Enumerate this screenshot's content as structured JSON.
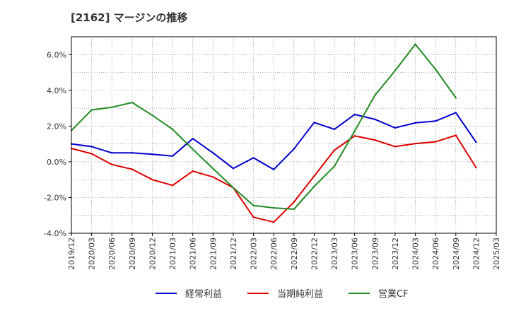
{
  "title": "[2162]  マージンの推移",
  "colors": {
    "series": [
      "#0000cc",
      "#dd0000",
      "#228b22"
    ],
    "grid": "#888888",
    "frame": "#000000",
    "background": "#ffffff"
  },
  "chart_data": {
    "type": "line",
    "title": "[2162]  マージンの推移",
    "x": [
      "2019/12",
      "2020/03",
      "2020/06",
      "2020/09",
      "2020/12",
      "2021/03",
      "2021/06",
      "2021/09",
      "2021/12",
      "2022/03",
      "2022/06",
      "2022/09",
      "2022/12",
      "2023/03",
      "2023/06",
      "2023/09",
      "2023/12",
      "2024/03",
      "2024/06",
      "2024/09",
      "2024/12",
      "2025/03"
    ],
    "y_ticks": [
      "6.0%",
      "4.0%",
      "2.0%",
      "0.0%",
      "-2.0%",
      "-4.0%"
    ],
    "ylim": [
      -4.0,
      7.0
    ],
    "grid": true,
    "legend_position": "bottom",
    "series": [
      {
        "name": "経常利益",
        "color": "#0000cc",
        "values": [
          1.0,
          0.85,
          0.5,
          0.5,
          0.42,
          0.32,
          1.3,
          0.5,
          -0.37,
          0.22,
          -0.43,
          0.72,
          2.2,
          1.82,
          2.65,
          2.38,
          1.9,
          2.18,
          2.28,
          2.75,
          1.1,
          null
        ]
      },
      {
        "name": "当期純利益",
        "color": "#dd0000",
        "values": [
          0.75,
          0.45,
          -0.15,
          -0.42,
          -1.0,
          -1.32,
          -0.52,
          -0.85,
          -1.45,
          -3.1,
          -3.38,
          -2.25,
          -0.8,
          0.65,
          1.45,
          1.22,
          0.85,
          1.02,
          1.12,
          1.48,
          -0.32,
          null
        ]
      },
      {
        "name": "営業CF",
        "color": "#228b22",
        "values": [
          1.75,
          2.9,
          3.05,
          3.32,
          2.6,
          1.82,
          0.7,
          -0.38,
          -1.45,
          -2.45,
          -2.58,
          -2.65,
          -1.38,
          -0.25,
          1.72,
          3.72,
          5.1,
          6.58,
          5.18,
          3.58,
          null,
          null
        ]
      }
    ]
  }
}
